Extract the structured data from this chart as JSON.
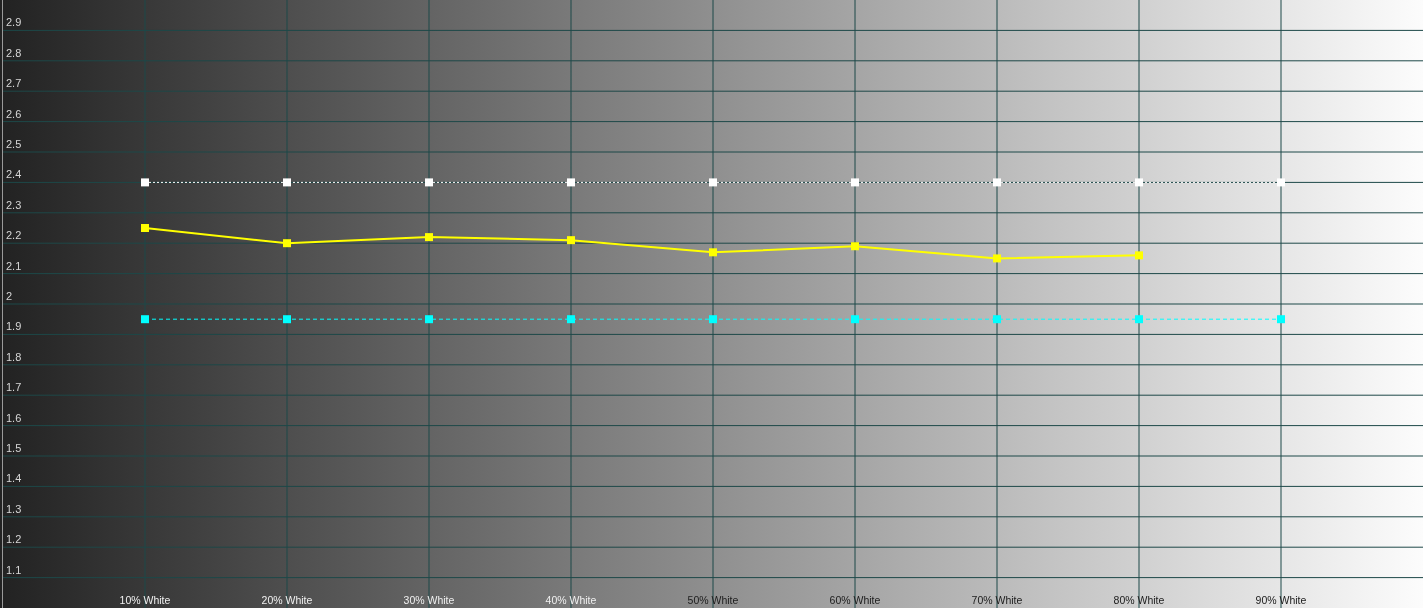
{
  "chart_data": {
    "type": "line",
    "categories": [
      "10% White",
      "20% White",
      "30% White",
      "40% White",
      "50% White",
      "60% White",
      "70% White",
      "80% White",
      "90% White"
    ],
    "series": [
      {
        "color": "#ffffff",
        "line_style": "dotted",
        "values": [
          2.4,
          2.4,
          2.4,
          2.4,
          2.4,
          2.4,
          2.4,
          2.4,
          2.4
        ]
      },
      {
        "color": "#00ffff",
        "line_style": "dashed",
        "values": [
          1.95,
          1.95,
          1.95,
          1.95,
          1.95,
          1.95,
          1.95,
          1.95,
          1.95
        ]
      },
      {
        "color": "#ffff00",
        "line_style": "solid",
        "values": [
          2.25,
          2.2,
          2.22,
          2.21,
          2.17,
          2.19,
          2.15,
          2.16,
          null
        ]
      }
    ],
    "ylim": [
      1.0,
      3.0
    ],
    "yticks": [
      1.1,
      1.2,
      1.3,
      1.4,
      1.5,
      1.6,
      1.7,
      1.8,
      1.9,
      2,
      2.1,
      2.2,
      2.3,
      2.4,
      2.5,
      2.6,
      2.7,
      2.8,
      2.9
    ],
    "grid": true,
    "marker": "square"
  }
}
